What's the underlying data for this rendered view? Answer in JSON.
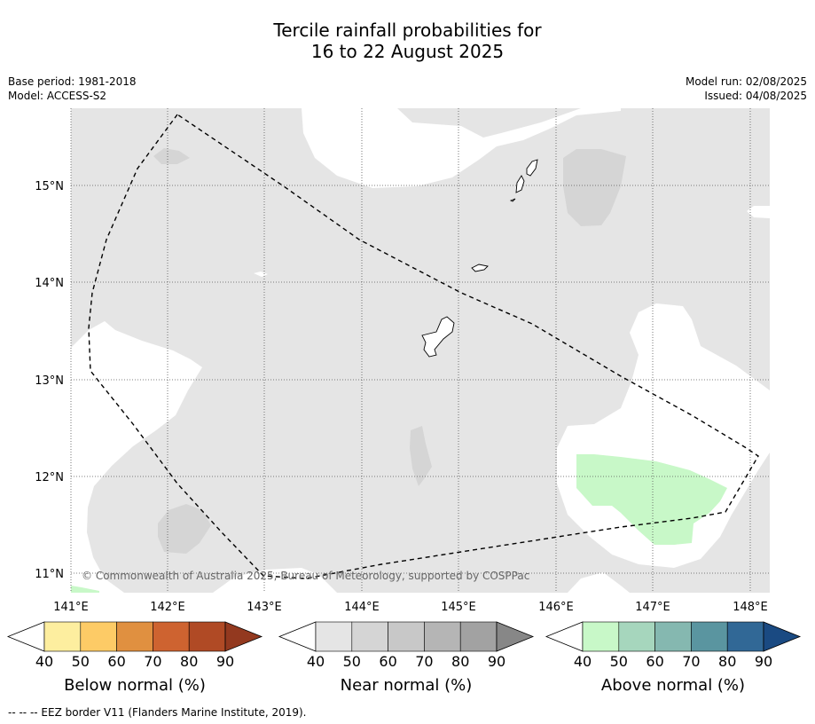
{
  "title": {
    "line1": "Tercile rainfall probabilities for",
    "line2": "16 to 22 August 2025"
  },
  "meta": {
    "base_period": "Base period: 1981-2018",
    "model": "Model: ACCESS-S2",
    "model_run": "Model run: 02/08/2025",
    "issued": "Issued: 04/08/2025"
  },
  "map": {
    "lon_ticks": [
      "141°E",
      "142°E",
      "143°E",
      "144°E",
      "145°E",
      "146°E",
      "147°E",
      "148°E"
    ],
    "lat_ticks": [
      "15°N",
      "14°N",
      "13°N",
      "12°N",
      "11°N"
    ],
    "copyright": "© Commonwealth of Australia 2025, Bureau of Meteorology, supported by COSPPac",
    "colors": {
      "near_normal_40": "#e5e5e5",
      "near_normal_50": "#d5d5d5",
      "above_normal_40": "#c8f8c8",
      "background": "#ffffff"
    }
  },
  "legends": [
    {
      "name": "below-normal",
      "label": "Below normal (%)",
      "ticks": [
        "40",
        "50",
        "60",
        "70",
        "80",
        "90"
      ],
      "colors": [
        "#ffffff",
        "#fdee9f",
        "#fdcb66",
        "#e09040",
        "#ce6330",
        "#b04a25",
        "#93391f"
      ]
    },
    {
      "name": "near-normal",
      "label": "Near normal (%)",
      "ticks": [
        "40",
        "50",
        "60",
        "70",
        "80",
        "90"
      ],
      "colors": [
        "#ffffff",
        "#e5e5e5",
        "#d5d5d5",
        "#c8c8c8",
        "#b5b5b5",
        "#a2a2a2",
        "#878787"
      ]
    },
    {
      "name": "above-normal",
      "label": "Above normal (%)",
      "ticks": [
        "40",
        "50",
        "60",
        "70",
        "80",
        "90"
      ],
      "colors": [
        "#ffffff",
        "#c8f8c8",
        "#a6d6bd",
        "#85b8b0",
        "#5a95a0",
        "#316896",
        "#1a4a82"
      ]
    }
  ],
  "footnote": "--  --  -- EEZ border V11 (Flanders Marine Institute, 2019)."
}
